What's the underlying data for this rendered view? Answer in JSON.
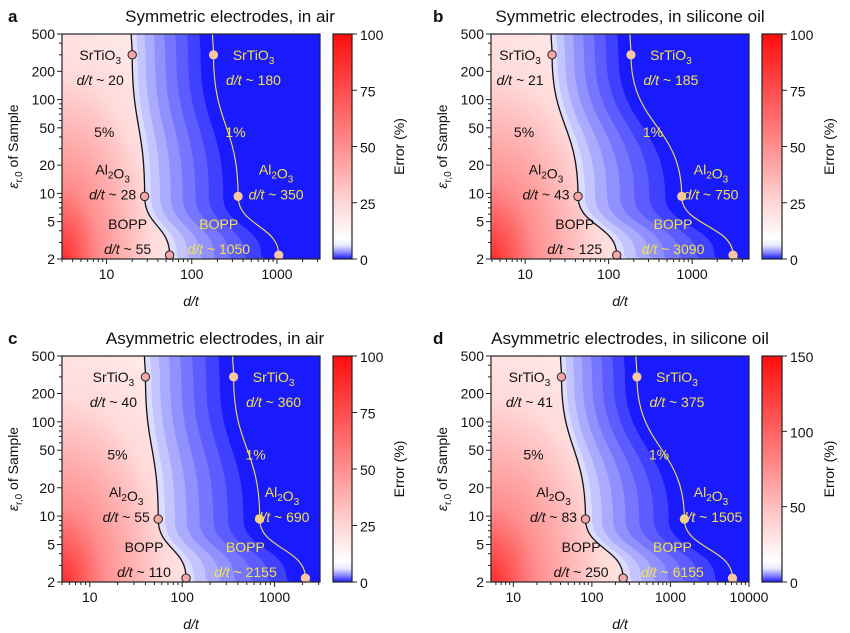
{
  "chart_data": [
    {
      "id": "a",
      "type": "heatmap",
      "panel_label": "a",
      "title": "Symmetric electrodes, in air",
      "xlabel": "d/t",
      "ylabel": "εr,0 of Sample",
      "xscale": "log",
      "yscale": "log",
      "xlim": [
        3,
        3200
      ],
      "ylim": [
        2,
        500
      ],
      "xticks": [
        10,
        100,
        1000
      ],
      "xtick_labels": [
        "10",
        "100",
        "1000"
      ],
      "yticks": [
        2,
        5,
        10,
        20,
        50,
        100,
        200,
        500
      ],
      "ytick_labels": [
        "2",
        "5",
        "10",
        "20",
        "50",
        "100",
        "200",
        "500"
      ],
      "colorbar": {
        "label": "Error (%)",
        "range": [
          0,
          100
        ],
        "ticks": [
          0,
          25,
          50,
          75,
          100
        ],
        "colormap": "blue-white-red"
      },
      "contours": [
        {
          "level": "5%",
          "color": "#111111",
          "points": [
            {
              "material": "SrTiO3",
              "eps": 300,
              "dt": 20
            },
            {
              "material": "Al2O3",
              "eps": 9.3,
              "dt": 28
            },
            {
              "material": "BOPP",
              "eps": 2.2,
              "dt": 55
            }
          ]
        },
        {
          "level": "1%",
          "color": "#f2e24a",
          "points": [
            {
              "material": "SrTiO3",
              "eps": 300,
              "dt": 180
            },
            {
              "material": "Al2O3",
              "eps": 9.3,
              "dt": 350
            },
            {
              "material": "BOPP",
              "eps": 2.2,
              "dt": 1050
            }
          ]
        }
      ],
      "annotations": [
        {
          "text": "SrTiO3",
          "sub": "3",
          "base": "SrTiO",
          "value": "d/t ~ 20",
          "color": "dark"
        },
        {
          "text": "Al2O3",
          "base": "Al",
          "sub": "2",
          "base2": "O",
          "sub2": "3",
          "value": "d/t ~ 28",
          "color": "dark"
        },
        {
          "text": "BOPP",
          "value": "d/t ~ 55",
          "color": "dark"
        },
        {
          "text": "SrTiO3",
          "value": "d/t ~ 180",
          "color": "yellow"
        },
        {
          "text": "Al2O3",
          "value": "d/t ~ 350",
          "color": "yellow"
        },
        {
          "text": "BOPP",
          "value": "d/t ~ 1050",
          "color": "yellow"
        }
      ],
      "contour_labels": [
        "5%",
        "1%"
      ]
    },
    {
      "id": "b",
      "type": "heatmap",
      "panel_label": "b",
      "title": "Symmetric electrodes, in silicone oil",
      "xlabel": "d/t",
      "ylabel": "εr,0 of Sample",
      "xscale": "log",
      "yscale": "log",
      "xlim": [
        3.9,
        4800
      ],
      "ylim": [
        2,
        500
      ],
      "xticks": [
        10,
        100,
        1000
      ],
      "xtick_labels": [
        "10",
        "100",
        "1000"
      ],
      "yticks": [
        2,
        5,
        10,
        20,
        50,
        100,
        200,
        500
      ],
      "ytick_labels": [
        "2",
        "5",
        "10",
        "20",
        "50",
        "100",
        "200",
        "500"
      ],
      "colorbar": {
        "label": "Error (%)",
        "range": [
          0,
          100
        ],
        "ticks": [
          0,
          25,
          50,
          75,
          100
        ],
        "colormap": "blue-white-red"
      },
      "contours": [
        {
          "level": "5%",
          "color": "#111111",
          "points": [
            {
              "material": "SrTiO3",
              "eps": 300,
              "dt": 21
            },
            {
              "material": "Al2O3",
              "eps": 9.3,
              "dt": 43
            },
            {
              "material": "BOPP",
              "eps": 2.2,
              "dt": 125
            }
          ]
        },
        {
          "level": "1%",
          "color": "#f2e24a",
          "points": [
            {
              "material": "SrTiO3",
              "eps": 300,
              "dt": 185
            },
            {
              "material": "Al2O3",
              "eps": 9.3,
              "dt": 750
            },
            {
              "material": "BOPP",
              "eps": 2.2,
              "dt": 3090
            }
          ]
        }
      ],
      "annotations": [
        {
          "text": "SrTiO3",
          "value": "d/t ~ 21",
          "color": "dark"
        },
        {
          "text": "Al2O3",
          "value": "d/t ~ 43",
          "color": "dark"
        },
        {
          "text": "BOPP",
          "value": "d/t ~ 125",
          "color": "dark"
        },
        {
          "text": "SrTiO3",
          "value": "d/t ~ 185",
          "color": "yellow"
        },
        {
          "text": "Al2O3",
          "value": "d/t ~ 750",
          "color": "yellow"
        },
        {
          "text": "BOPP",
          "value": "d/t ~ 3090",
          "color": "yellow"
        }
      ],
      "contour_labels": [
        "5%",
        "1%"
      ]
    },
    {
      "id": "c",
      "type": "heatmap",
      "panel_label": "c",
      "title": "Asymmetric electrodes, in air",
      "xlabel": "d/t",
      "ylabel": "εr,0 of Sample",
      "xscale": "log",
      "yscale": "log",
      "xlim": [
        5,
        3100
      ],
      "ylim": [
        2,
        500
      ],
      "xticks": [
        10,
        100,
        1000
      ],
      "xtick_labels": [
        "10",
        "100",
        "1000"
      ],
      "yticks": [
        2,
        5,
        10,
        20,
        50,
        100,
        200,
        500
      ],
      "ytick_labels": [
        "2",
        "5",
        "10",
        "20",
        "50",
        "100",
        "200",
        "500"
      ],
      "colorbar": {
        "label": "Error (%)",
        "range": [
          0,
          100
        ],
        "ticks": [
          0,
          25,
          50,
          75,
          100
        ],
        "colormap": "blue-white-red"
      },
      "contours": [
        {
          "level": "5%",
          "color": "#111111",
          "points": [
            {
              "material": "SrTiO3",
              "eps": 300,
              "dt": 40
            },
            {
              "material": "Al2O3",
              "eps": 9.3,
              "dt": 55
            },
            {
              "material": "BOPP",
              "eps": 2.2,
              "dt": 110
            }
          ]
        },
        {
          "level": "1%",
          "color": "#f2e24a",
          "points": [
            {
              "material": "SrTiO3",
              "eps": 300,
              "dt": 360
            },
            {
              "material": "Al2O3",
              "eps": 9.3,
              "dt": 690
            },
            {
              "material": "BOPP",
              "eps": 2.2,
              "dt": 2155
            }
          ]
        }
      ],
      "annotations": [
        {
          "text": "SrTiO3",
          "value": "d/t ~ 40",
          "color": "dark"
        },
        {
          "text": "Al2O3",
          "value": "d/t ~ 55",
          "color": "dark"
        },
        {
          "text": "BOPP",
          "value": "d/t ~ 110",
          "color": "dark"
        },
        {
          "text": "SrTiO3",
          "value": "d/t ~ 360",
          "color": "yellow"
        },
        {
          "text": "Al2O3",
          "value": "d/t ~ 690",
          "color": "yellow"
        },
        {
          "text": "BOPP",
          "value": "d/t ~ 2155",
          "color": "yellow"
        }
      ],
      "contour_labels": [
        "5%",
        "1%"
      ]
    },
    {
      "id": "d",
      "type": "heatmap",
      "panel_label": "d",
      "title": "Asymmetric electrodes, in silicone oil",
      "xlabel": "d/t",
      "ylabel": "εr,0 of Sample",
      "xscale": "log",
      "yscale": "log",
      "xlim": [
        5.2,
        10000
      ],
      "ylim": [
        2,
        500
      ],
      "xticks": [
        10,
        100,
        1000,
        10000
      ],
      "xtick_labels": [
        "10",
        "100",
        "1000",
        "10000"
      ],
      "yticks": [
        2,
        5,
        10,
        20,
        50,
        100,
        200,
        500
      ],
      "ytick_labels": [
        "2",
        "5",
        "10",
        "20",
        "50",
        "100",
        "200",
        "500"
      ],
      "colorbar": {
        "label": "Error (%)",
        "range": [
          0,
          150
        ],
        "ticks": [
          0,
          50,
          100,
          150
        ],
        "colormap": "blue-white-red"
      },
      "contours": [
        {
          "level": "5%",
          "color": "#111111",
          "points": [
            {
              "material": "SrTiO3",
              "eps": 300,
              "dt": 41
            },
            {
              "material": "Al2O3",
              "eps": 9.3,
              "dt": 83
            },
            {
              "material": "BOPP",
              "eps": 2.2,
              "dt": 250
            }
          ]
        },
        {
          "level": "1%",
          "color": "#f2e24a",
          "points": [
            {
              "material": "SrTiO3",
              "eps": 300,
              "dt": 375
            },
            {
              "material": "Al2O3",
              "eps": 9.3,
              "dt": 1505
            },
            {
              "material": "BOPP",
              "eps": 2.2,
              "dt": 6155
            }
          ]
        }
      ],
      "annotations": [
        {
          "text": "SrTiO3",
          "value": "d/t ~ 41",
          "color": "dark"
        },
        {
          "text": "Al2O3",
          "value": "d/t ~ 83",
          "color": "dark"
        },
        {
          "text": "BOPP",
          "value": "d/t ~ 250",
          "color": "dark"
        },
        {
          "text": "SrTiO3",
          "value": "d/t ~ 375",
          "color": "yellow"
        },
        {
          "text": "Al2O3",
          "value": "d/t ~ 1505",
          "color": "yellow"
        },
        {
          "text": "BOPP",
          "value": "d/t ~ 6155",
          "color": "yellow"
        }
      ],
      "contour_labels": [
        "5%",
        "1%"
      ]
    }
  ],
  "colors": {
    "blue": "#1a1aff",
    "red": "#ff0d0d",
    "contour_dark": "#111111",
    "contour_yellow": "#f2e24a",
    "marker_fill": "#f5a6a6",
    "marker_fill_yellow": "#f9c8a0"
  }
}
